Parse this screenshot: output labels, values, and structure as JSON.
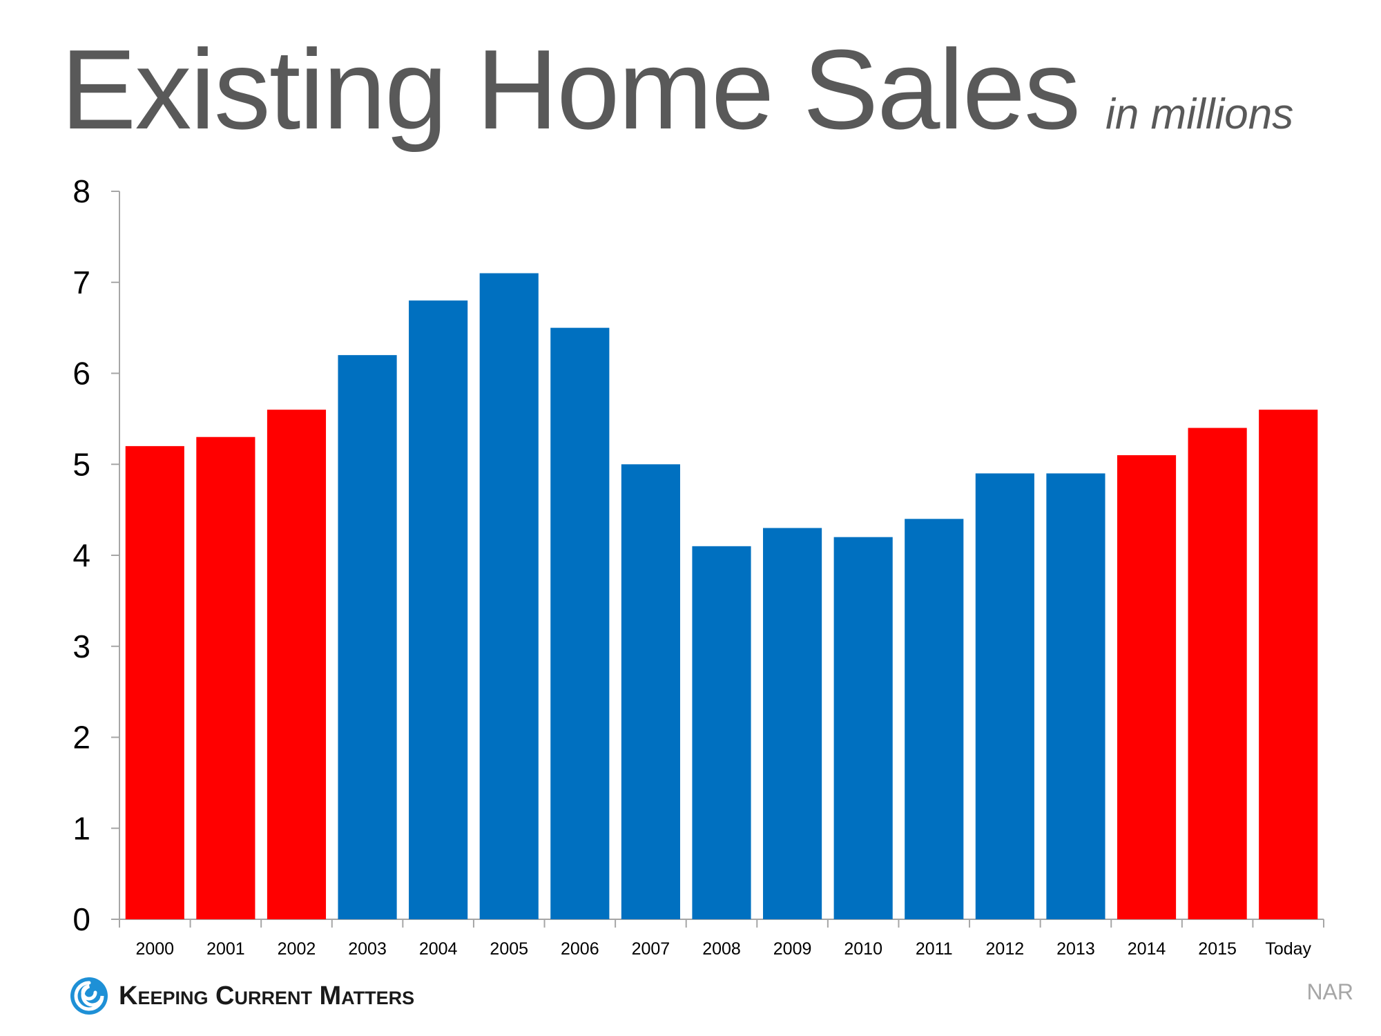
{
  "header": {
    "title": "Existing Home Sales",
    "subtitle": "in millions"
  },
  "footer": {
    "brand": "Keeping Current Matters",
    "source": "NAR"
  },
  "colors": {
    "red": "#ff0000",
    "blue": "#0070c0",
    "axis": "#a6a6a6",
    "text": "#000000",
    "logo": "#1e90d6"
  },
  "chart_data": {
    "type": "bar",
    "categories": [
      "2000",
      "2001",
      "2002",
      "2003",
      "2004",
      "2005",
      "2006",
      "2007",
      "2008",
      "2009",
      "2010",
      "2011",
      "2012",
      "2013",
      "2014",
      "2015",
      "Today"
    ],
    "values": [
      5.2,
      5.3,
      5.6,
      6.2,
      6.8,
      7.1,
      6.5,
      5.0,
      4.1,
      4.3,
      4.2,
      4.4,
      4.9,
      4.9,
      5.1,
      5.4,
      5.6
    ],
    "bar_colors": [
      "red",
      "red",
      "red",
      "blue",
      "blue",
      "blue",
      "blue",
      "blue",
      "blue",
      "blue",
      "blue",
      "blue",
      "blue",
      "blue",
      "red",
      "red",
      "red"
    ],
    "ylim": [
      0,
      8
    ],
    "yticks": [
      0,
      1,
      2,
      3,
      4,
      5,
      6,
      7,
      8
    ],
    "grid": false,
    "legend": "none"
  }
}
